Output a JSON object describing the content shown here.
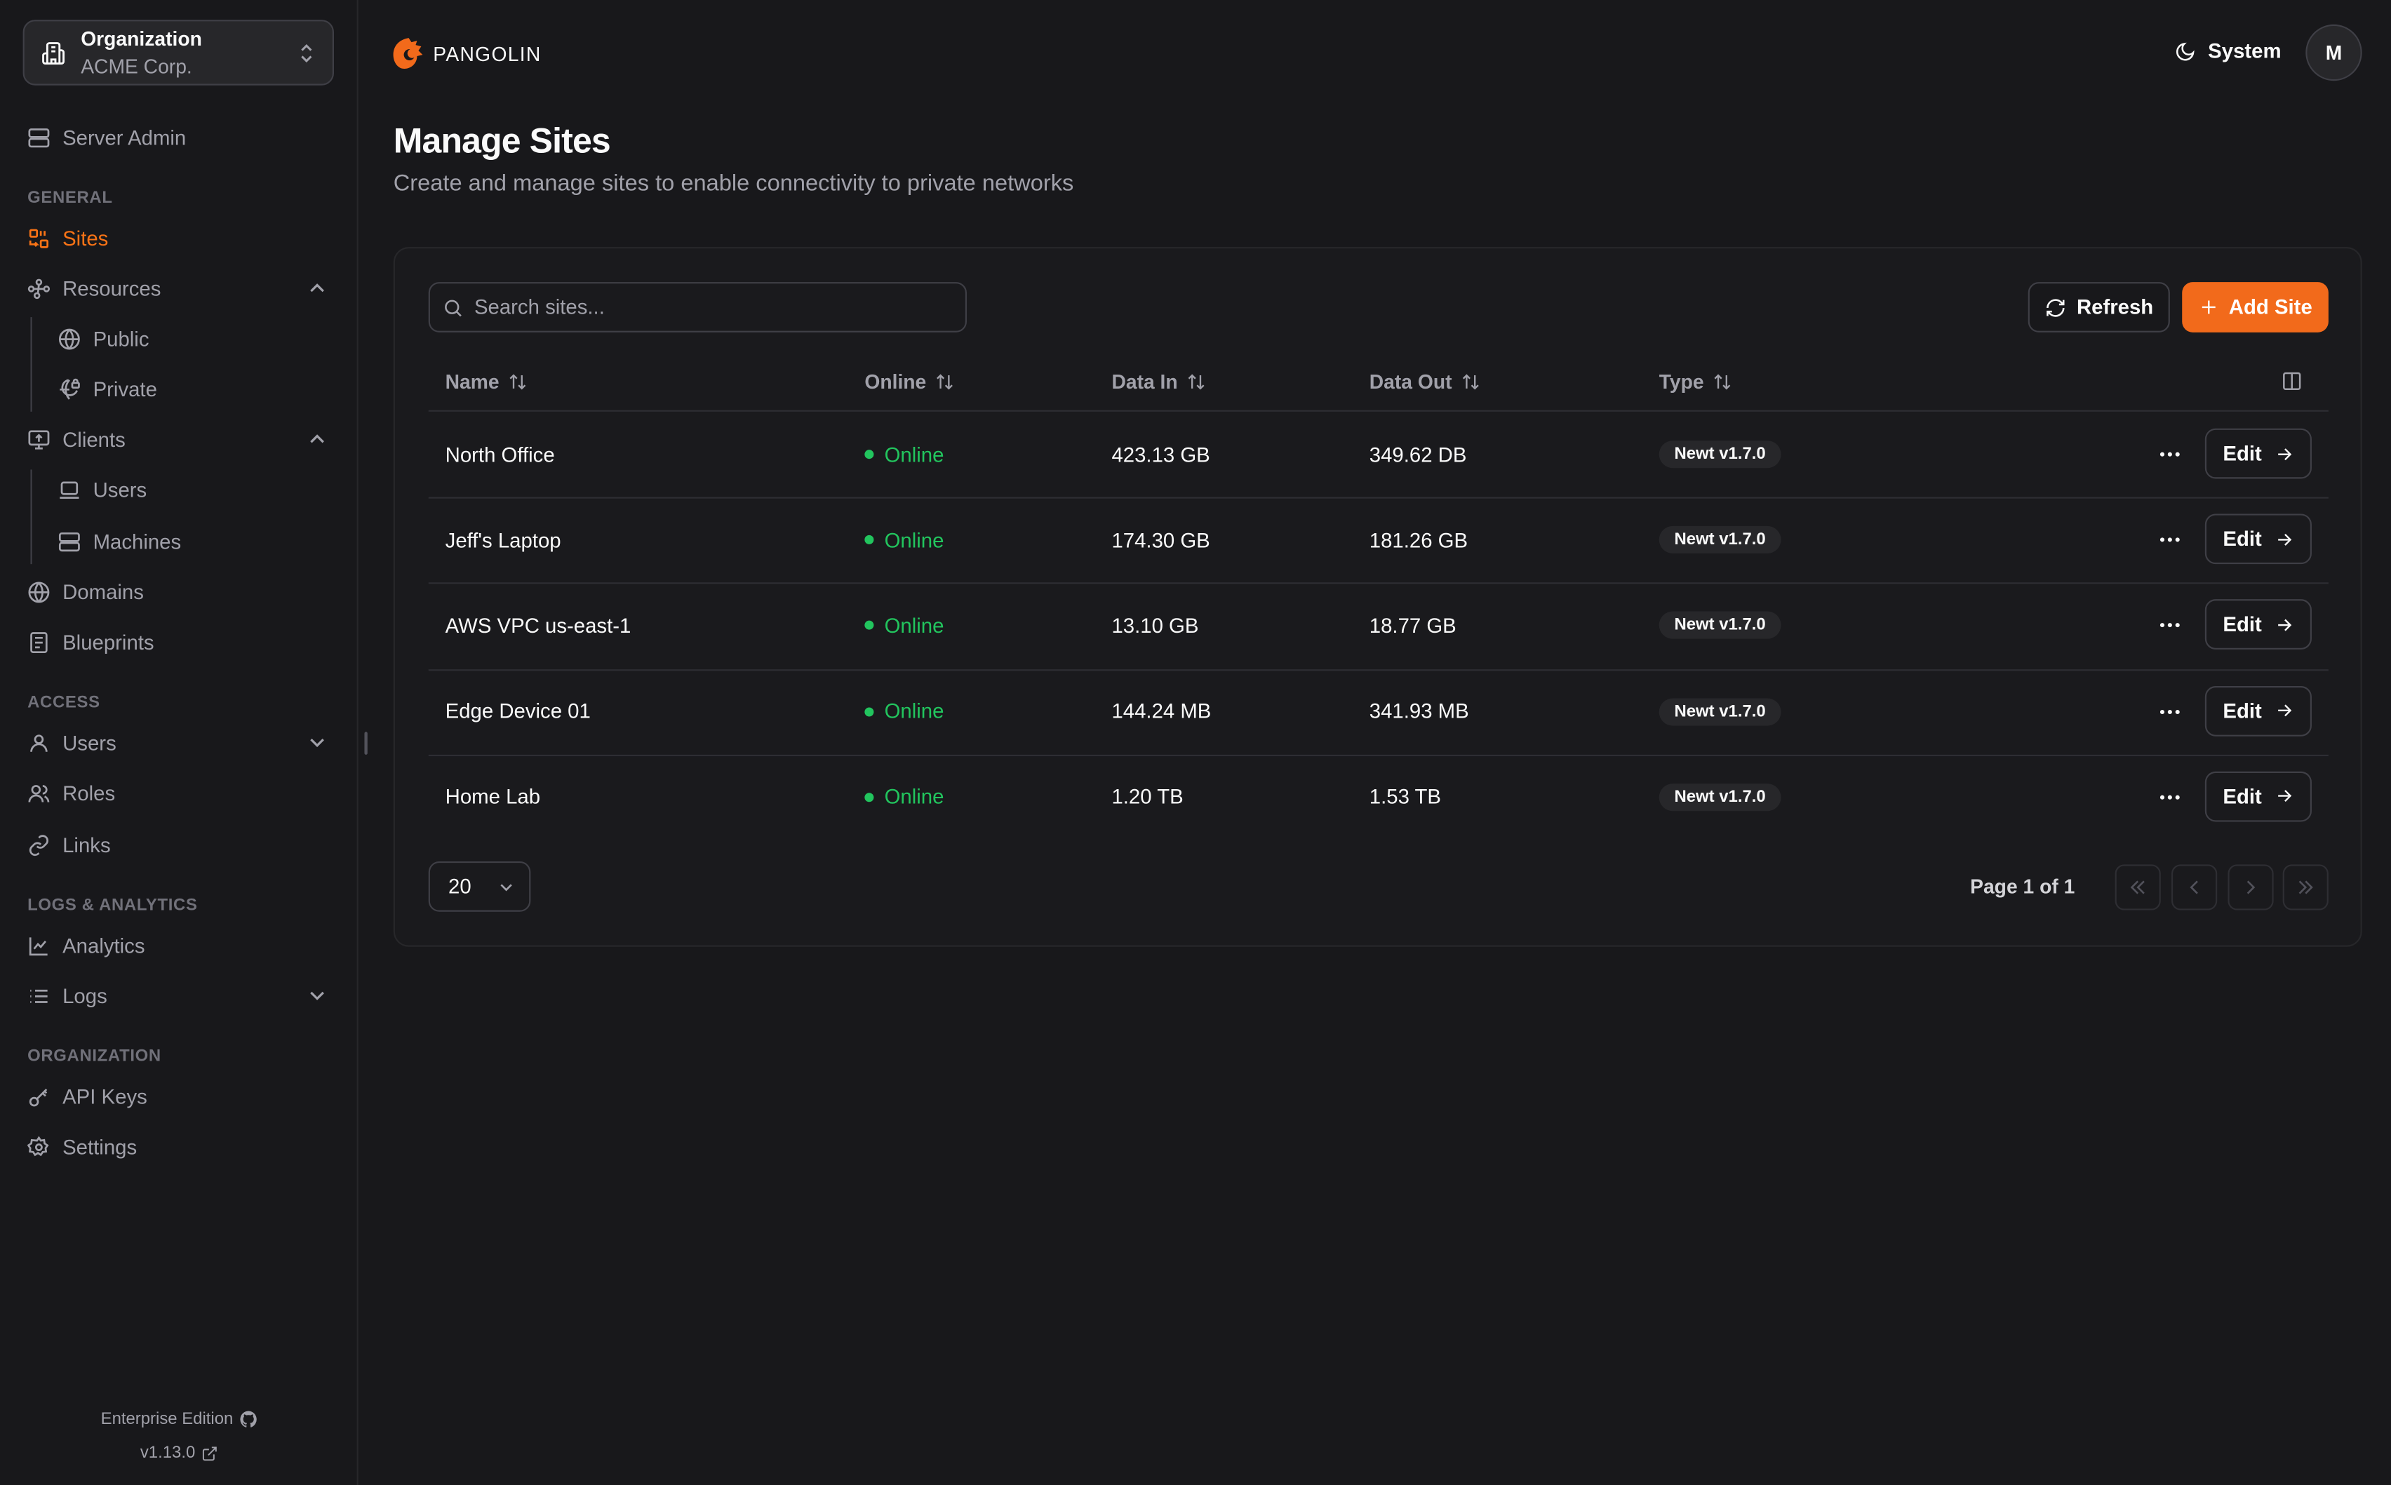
{
  "org": {
    "label": "Organization",
    "name": "ACME Corp."
  },
  "sidebar": {
    "server_admin": "Server Admin",
    "sections": {
      "general": "GENERAL",
      "access": "ACCESS",
      "logs": "LOGS & ANALYTICS",
      "organization": "ORGANIZATION"
    },
    "items": {
      "sites": "Sites",
      "resources": "Resources",
      "public": "Public",
      "private": "Private",
      "clients": "Clients",
      "users_client": "Users",
      "machines": "Machines",
      "domains": "Domains",
      "blueprints": "Blueprints",
      "users": "Users",
      "roles": "Roles",
      "links": "Links",
      "analytics": "Analytics",
      "logs": "Logs",
      "api_keys": "API Keys",
      "settings": "Settings"
    },
    "active": "sites",
    "footer": {
      "edition": "Enterprise Edition",
      "version": "v1.13.0"
    }
  },
  "header": {
    "brand": "PANGOLIN",
    "theme": "System",
    "avatar": "M"
  },
  "page": {
    "title": "Manage Sites",
    "subtitle": "Create and manage sites to enable connectivity to private networks"
  },
  "toolbar": {
    "search_placeholder": "Search sites...",
    "refresh": "Refresh",
    "add": "Add Site"
  },
  "table": {
    "columns": [
      "Name",
      "Online",
      "Data In",
      "Data Out",
      "Type"
    ],
    "rows": [
      {
        "name": "North Office",
        "online": "Online",
        "data_in": "423.13 GB",
        "data_out": "349.62 DB",
        "type": "Newt v1.7.0",
        "edit": "Edit"
      },
      {
        "name": "Jeff's Laptop",
        "online": "Online",
        "data_in": "174.30 GB",
        "data_out": "181.26 GB",
        "type": "Newt v1.7.0",
        "edit": "Edit"
      },
      {
        "name": "AWS VPC us-east-1",
        "online": "Online",
        "data_in": "13.10 GB",
        "data_out": "18.77 GB",
        "type": "Newt v1.7.0",
        "edit": "Edit"
      },
      {
        "name": "Edge Device 01",
        "online": "Online",
        "data_in": "144.24 MB",
        "data_out": "341.93 MB",
        "type": "Newt v1.7.0",
        "edit": "Edit"
      },
      {
        "name": "Home Lab",
        "online": "Online",
        "data_in": "1.20 TB",
        "data_out": "1.53 TB",
        "type": "Newt v1.7.0",
        "edit": "Edit"
      }
    ]
  },
  "pagination": {
    "page_size": "20",
    "page_text": "Page 1 of 1"
  },
  "colors": {
    "accent": "#f26a1b",
    "online": "#22c55e",
    "background": "#18181b"
  }
}
